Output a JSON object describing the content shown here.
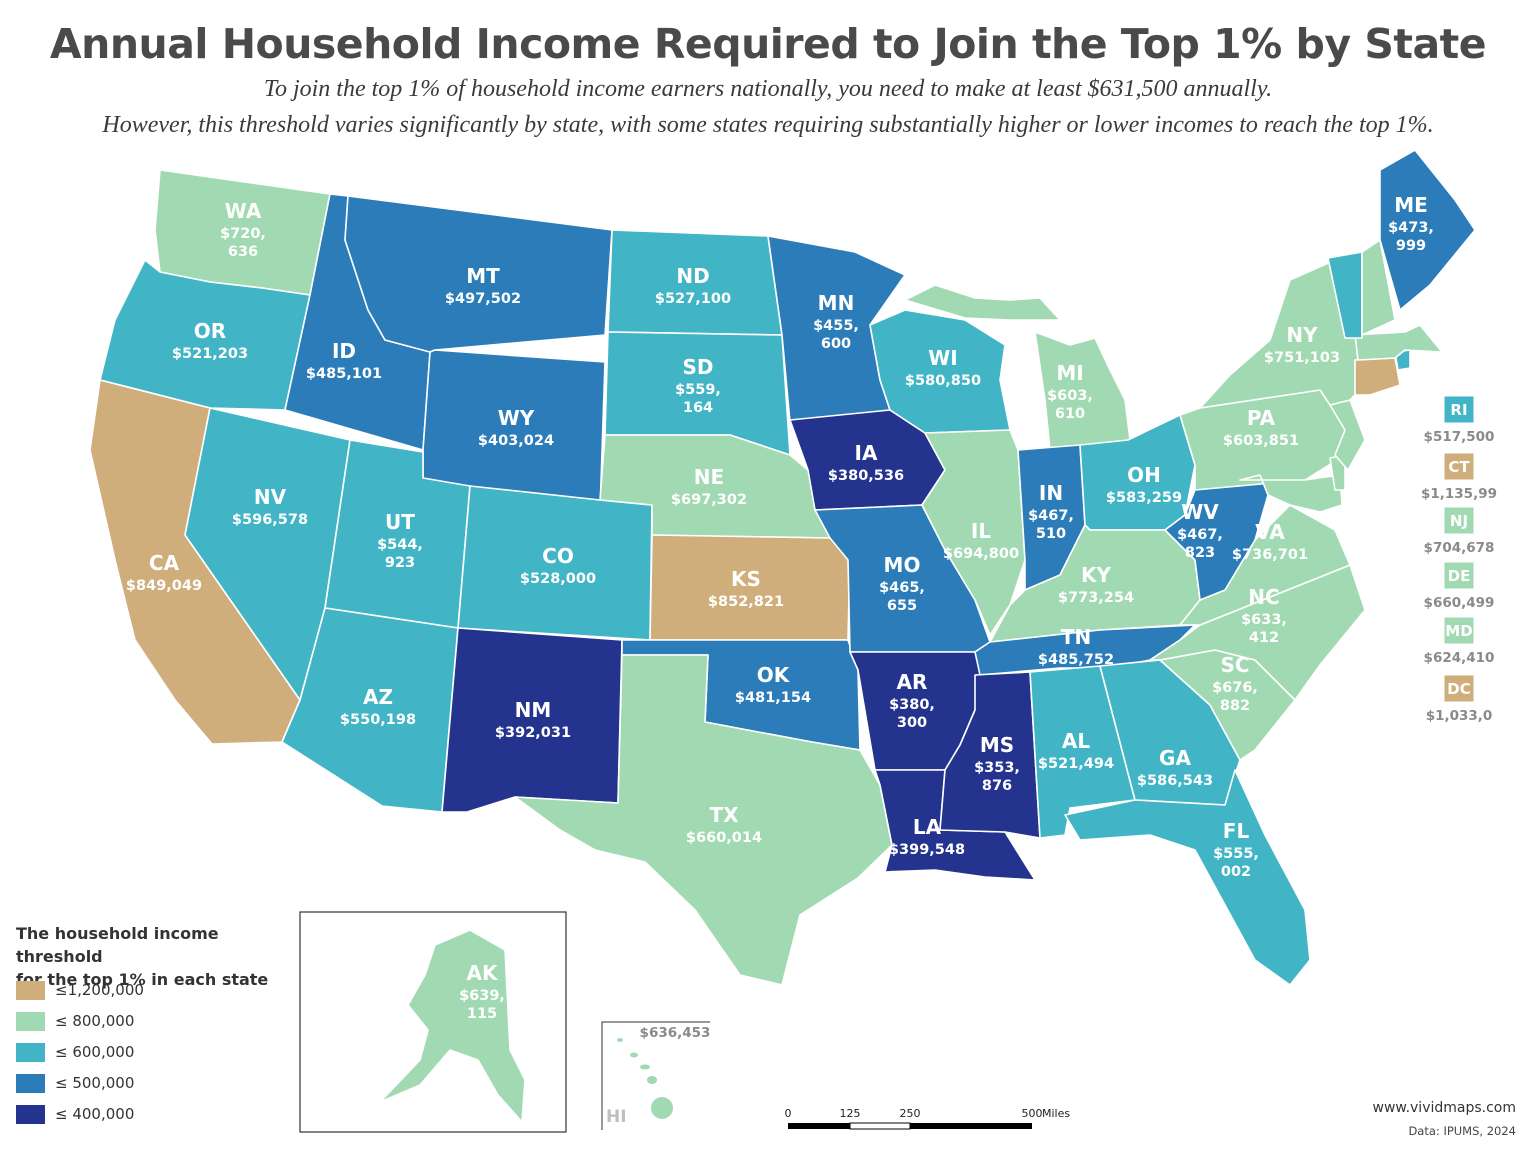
{
  "title": "Annual Household Income Required to Join the Top 1% by State",
  "subtitle_line1": "To join the top 1% of household income earners nationally, you need to make at least $631,500 annually.",
  "subtitle_line2": "However, this threshold varies significantly by state, with some states requiring substantially higher or lower incomes to reach the top 1%.",
  "colors": {
    "le_1200000": "#cfae7c",
    "le_800000": "#a1d9b2",
    "le_600000": "#41b5c5",
    "le_500000": "#2b7cb9",
    "le_400000": "#24338d"
  },
  "legend": {
    "title_line1": "The household income threshold",
    "title_line2": "for the top 1% in each state",
    "items": [
      {
        "label": "≤1,200,000",
        "color": "#cfae7c"
      },
      {
        "label": "≤ 800,000",
        "color": "#a1d9b2"
      },
      {
        "label": "≤ 600,000",
        "color": "#41b5c5"
      },
      {
        "label": "≤ 500,000",
        "color": "#2b7cb9"
      },
      {
        "label": "≤ 400,000",
        "color": "#24338d"
      }
    ]
  },
  "states": {
    "WA": {
      "abbr": "WA",
      "v1": "$720,",
      "v2": "636"
    },
    "OR": {
      "abbr": "OR",
      "v1": "$521,203"
    },
    "CA": {
      "abbr": "CA",
      "v1": "$849,049"
    },
    "ID": {
      "abbr": "ID",
      "v1": "$485,101"
    },
    "NV": {
      "abbr": "NV",
      "v1": "$596,578"
    },
    "MT": {
      "abbr": "MT",
      "v1": "$497,502"
    },
    "WY": {
      "abbr": "WY",
      "v1": "$403,024"
    },
    "UT": {
      "abbr": "UT",
      "v1": "$544,",
      "v2": "923"
    },
    "AZ": {
      "abbr": "AZ",
      "v1": "$550,198"
    },
    "CO": {
      "abbr": "CO",
      "v1": "$528,000"
    },
    "NM": {
      "abbr": "NM",
      "v1": "$392,031"
    },
    "ND": {
      "abbr": "ND",
      "v1": "$527,100"
    },
    "SD": {
      "abbr": "SD",
      "v1": "$559,",
      "v2": "164"
    },
    "NE": {
      "abbr": "NE",
      "v1": "$697,302"
    },
    "KS": {
      "abbr": "KS",
      "v1": "$852,821"
    },
    "OK": {
      "abbr": "OK",
      "v1": "$481,154"
    },
    "TX": {
      "abbr": "TX",
      "v1": "$660,014"
    },
    "MN": {
      "abbr": "MN",
      "v1": "$455,",
      "v2": "600"
    },
    "IA": {
      "abbr": "IA",
      "v1": "$380,536"
    },
    "MO": {
      "abbr": "MO",
      "v1": "$465,",
      "v2": "655"
    },
    "AR": {
      "abbr": "AR",
      "v1": "$380,",
      "v2": "300"
    },
    "LA": {
      "abbr": "LA",
      "v1": "$399,548"
    },
    "WI": {
      "abbr": "WI",
      "v1": "$580,850"
    },
    "IL": {
      "abbr": "IL",
      "v1": "$694,800"
    },
    "MI": {
      "abbr": "MI",
      "v1": "$603,",
      "v2": "610"
    },
    "IN": {
      "abbr": "IN",
      "v1": "$467,",
      "v2": "510"
    },
    "OH": {
      "abbr": "OH",
      "v1": "$583,259"
    },
    "KY": {
      "abbr": "KY",
      "v1": "$773,254"
    },
    "TN": {
      "abbr": "TN",
      "v1": "$485,752"
    },
    "MS": {
      "abbr": "MS",
      "v1": "$353,",
      "v2": "876"
    },
    "AL": {
      "abbr": "AL",
      "v1": "$521,494"
    },
    "GA": {
      "abbr": "GA",
      "v1": "$586,543"
    },
    "FL": {
      "abbr": "FL",
      "v1": "$555,",
      "v2": "002"
    },
    "SC": {
      "abbr": "SC",
      "v1": "$676,",
      "v2": "882"
    },
    "NC": {
      "abbr": "NC",
      "v1": "$633,",
      "v2": "412"
    },
    "VA": {
      "abbr": "VA",
      "v1": "$736,701"
    },
    "WV": {
      "abbr": "WV",
      "v1": "$467,",
      "v2": "823"
    },
    "PA": {
      "abbr": "PA",
      "v1": "$603,851"
    },
    "NY": {
      "abbr": "NY",
      "v1": "$751,103"
    },
    "ME": {
      "abbr": "ME",
      "v1": "$473,",
      "v2": "999"
    },
    "AK": {
      "abbr": "AK",
      "v1": "$639,",
      "v2": "115"
    },
    "HI": {
      "abbr": "HI",
      "v1": "$636,453"
    }
  },
  "small_states": [
    {
      "abbr": "RI",
      "value": "$517,500",
      "color": "#41b5c5"
    },
    {
      "abbr": "CT",
      "value": "$1,135,99",
      "color": "#cfae7c"
    },
    {
      "abbr": "NJ",
      "value": "$704,678",
      "color": "#a1d9b2"
    },
    {
      "abbr": "DE",
      "value": "$660,499",
      "color": "#a1d9b2"
    },
    {
      "abbr": "MD",
      "value": "$624,410",
      "color": "#a1d9b2"
    },
    {
      "abbr": "DC",
      "value": "$1,033,0",
      "color": "#cfae7c"
    }
  ],
  "scale_bar": {
    "t0": "0",
    "t1": "125",
    "t2": "250",
    "t3": "500",
    "unit": "Miles"
  },
  "credit": {
    "site": "www.vividmaps.com",
    "source": "Data: IPUMS, 2024"
  }
}
